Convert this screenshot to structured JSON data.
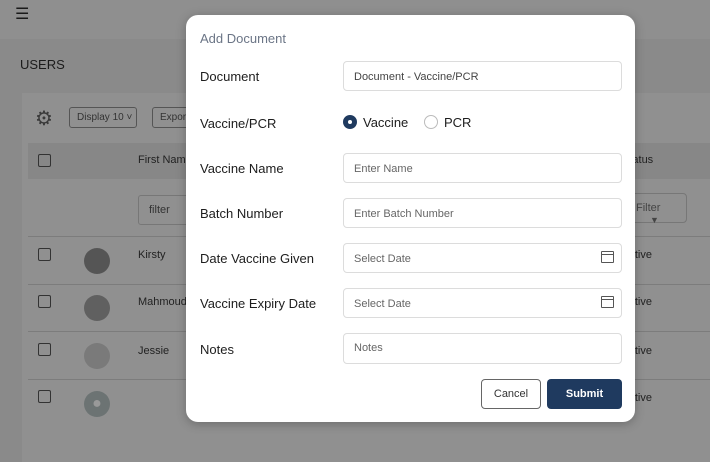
{
  "header": {
    "menu_icon": "hamburger-icon"
  },
  "page": {
    "title": "USERS"
  },
  "toolbar": {
    "settings_icon": "gear-icon",
    "display_label": "Display 10 ˅",
    "export_label": "Export"
  },
  "table": {
    "columns": {
      "first_name": "First Name",
      "status": "Status"
    },
    "filter_placeholder": "filter",
    "status_filter": "Filter",
    "rows": [
      {
        "first_name": "Kirsty",
        "status": "Active"
      },
      {
        "first_name": "Mahmoud",
        "status": "Active"
      },
      {
        "first_name": "Jessie",
        "status": "Active"
      },
      {
        "first_name": "",
        "status": "Active"
      }
    ]
  },
  "modal": {
    "title": "Add Document",
    "fields": {
      "document": {
        "label": "Document",
        "value": "Document - Vaccine/PCR"
      },
      "type": {
        "label": "Vaccine/PCR",
        "options": [
          "Vaccine",
          "PCR"
        ],
        "selected": "Vaccine"
      },
      "vaccine_name": {
        "label": "Vaccine Name",
        "placeholder": "Enter Name"
      },
      "batch_number": {
        "label": "Batch Number",
        "placeholder": "Enter Batch Number"
      },
      "date_given": {
        "label": "Date Vaccine Given",
        "placeholder": "Select Date"
      },
      "expiry_date": {
        "label": "Vaccine Expiry Date",
        "placeholder": "Select Date"
      },
      "notes": {
        "label": "Notes",
        "placeholder": "Notes"
      }
    },
    "cancel_label": "Cancel",
    "submit_label": "Submit",
    "accent": "#1f3a5f"
  }
}
